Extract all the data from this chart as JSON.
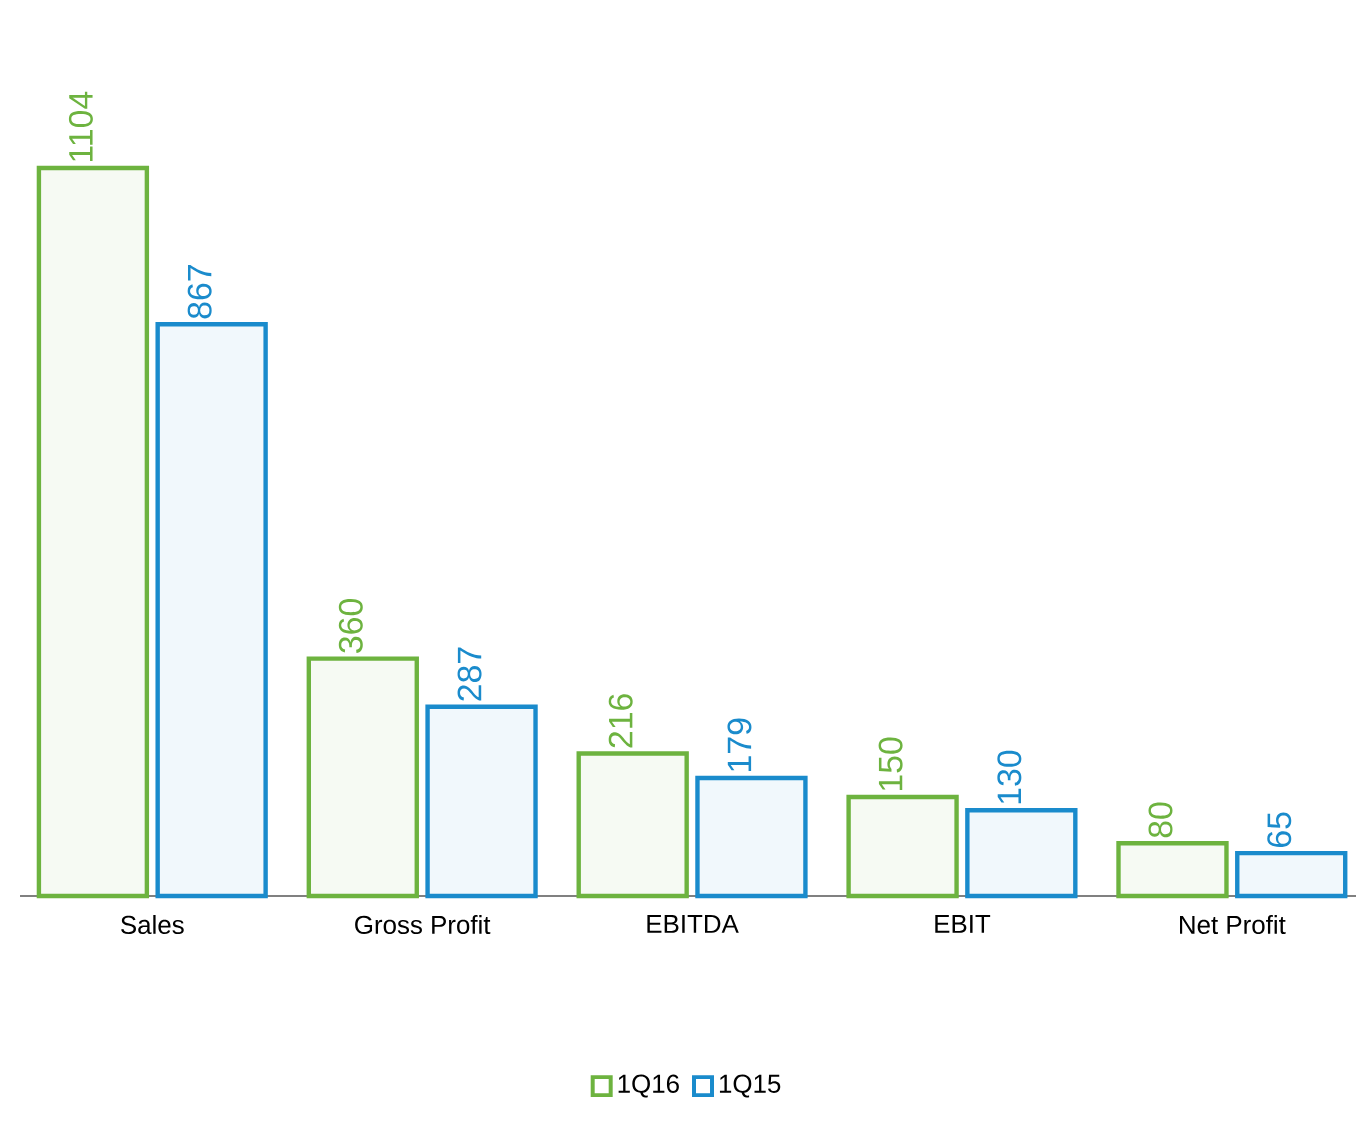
{
  "chart_data": {
    "type": "bar",
    "categories": [
      "Sales",
      "Gross Profit",
      "EBITDA",
      "EBIT",
      "Net Profit"
    ],
    "series": [
      {
        "name": "1Q16",
        "color": "#6db33f",
        "values": [
          1104,
          360,
          216,
          150,
          80
        ]
      },
      {
        "name": "1Q15",
        "color": "#1a8bcc",
        "values": [
          867,
          287,
          179,
          130,
          65
        ]
      }
    ],
    "data_labels": true,
    "legend": "bottom",
    "tick_labels": "x",
    "grid": false
  }
}
